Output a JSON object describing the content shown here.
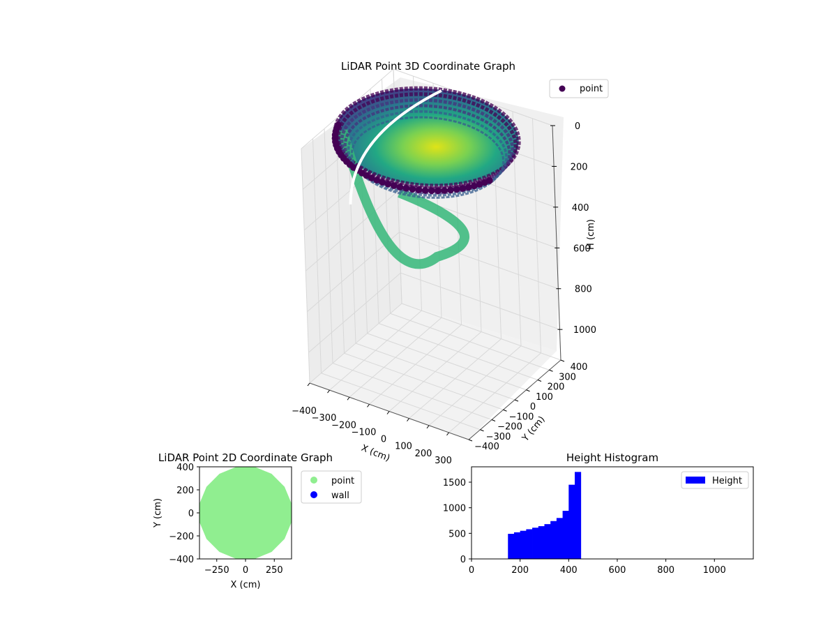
{
  "chart_data": [
    {
      "id": "chart3d",
      "type": "scatter",
      "title": "LiDAR Point 3D Coordinate Graph",
      "xlabel": "X (cm)",
      "ylabel": "Y (cm)",
      "zlabel": "H (cm)",
      "xticks": [
        "−400",
        "−300",
        "−200",
        "−100",
        "0",
        "100",
        "200",
        "300"
      ],
      "yticks": [
        "−400",
        "−300",
        "−200",
        "−100",
        "0",
        "100",
        "200",
        "300",
        "400"
      ],
      "zticks": [
        "0",
        "200",
        "400",
        "600",
        "800",
        "1000"
      ],
      "xlim": [
        -400,
        400
      ],
      "ylim": [
        -400,
        400
      ],
      "zlim": [
        0,
        1150
      ],
      "z_inverted": true,
      "legend": {
        "position": "top-right",
        "entries": [
          {
            "label": "point",
            "color": "#440154"
          }
        ]
      },
      "surface": {
        "shape": "hemispherical bowl",
        "radius_cm": 400,
        "rim_height_cm": 0,
        "bottom_height_cm": 450,
        "colormap": "viridis"
      },
      "grid": true
    },
    {
      "id": "chart2d",
      "type": "scatter",
      "title": "LiDAR Point 2D Coordinate Graph",
      "xlabel": "X (cm)",
      "ylabel": "Y (cm)",
      "xticks": [
        "−250",
        "0",
        "250"
      ],
      "yticks": [
        "400",
        "200",
        "0",
        "−200",
        "−400"
      ],
      "xlim": [
        -400,
        400
      ],
      "ylim": [
        -400,
        400
      ],
      "disk_radius_cm": 400,
      "series": [
        {
          "name": "point",
          "color": "#90ee90"
        },
        {
          "name": "wall",
          "color": "#0000ff"
        }
      ],
      "legend": {
        "position": "outside-right"
      }
    },
    {
      "id": "hist",
      "type": "bar",
      "title": "Height Histogram",
      "xticks": [
        "0",
        "200",
        "400",
        "600",
        "800",
        "1000"
      ],
      "yticks": [
        "0",
        "500",
        "1000",
        "1500"
      ],
      "xlim": [
        0,
        1160
      ],
      "ylim": [
        0,
        1800
      ],
      "bin_width": 25,
      "bin_starts": [
        150,
        175,
        200,
        225,
        250,
        275,
        300,
        325,
        350,
        375,
        400,
        425
      ],
      "values": [
        490,
        520,
        550,
        580,
        610,
        640,
        680,
        740,
        800,
        940,
        1450,
        1700
      ],
      "color": "#0000ff",
      "legend": {
        "position": "top-right",
        "entries": [
          {
            "label": "Height",
            "color": "#0000ff"
          }
        ]
      }
    }
  ]
}
